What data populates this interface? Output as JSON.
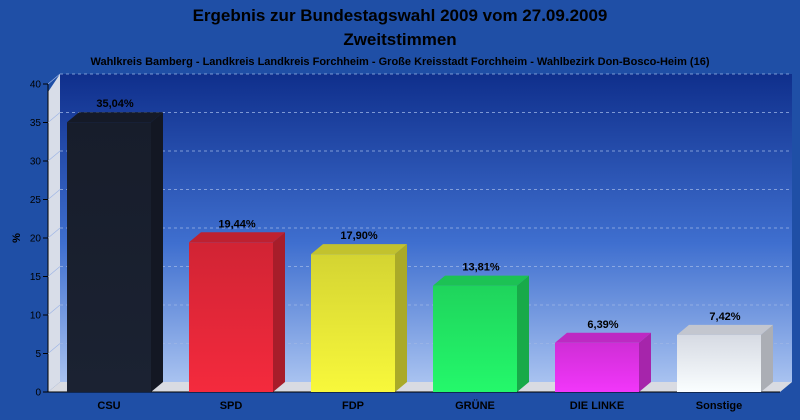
{
  "chart_data": {
    "type": "bar",
    "title": "Ergebnis zur Bundestagswahl 2009 vom 27.09.2009",
    "subtitle": "Zweitstimmen",
    "caption": "Wahlkreis Bamberg - Landkreis Landkreis Forchheim - Große Kreisstadt Forchheim - Wahlbezirk Don-Bosco-Heim (16)",
    "ylabel": "%",
    "xlabel": "",
    "ylim": [
      0,
      40
    ],
    "yticks": [
      0,
      5,
      10,
      15,
      20,
      25,
      30,
      35,
      40
    ],
    "grid": true,
    "legend": "none",
    "categories": [
      "CSU",
      "SPD",
      "FDP",
      "GRÜNE",
      "DIE LINKE",
      "Sonstige"
    ],
    "values": [
      35.04,
      19.44,
      17.9,
      13.81,
      6.39,
      7.42
    ],
    "value_labels": [
      "35,04%",
      "19,44%",
      "17,90%",
      "13,81%",
      "6,39%",
      "7,42%"
    ],
    "colors": [
      "#1a2030",
      "#e8283a",
      "#ecec38",
      "#22ec66",
      "#e633ee",
      "#eef2fc"
    ]
  }
}
